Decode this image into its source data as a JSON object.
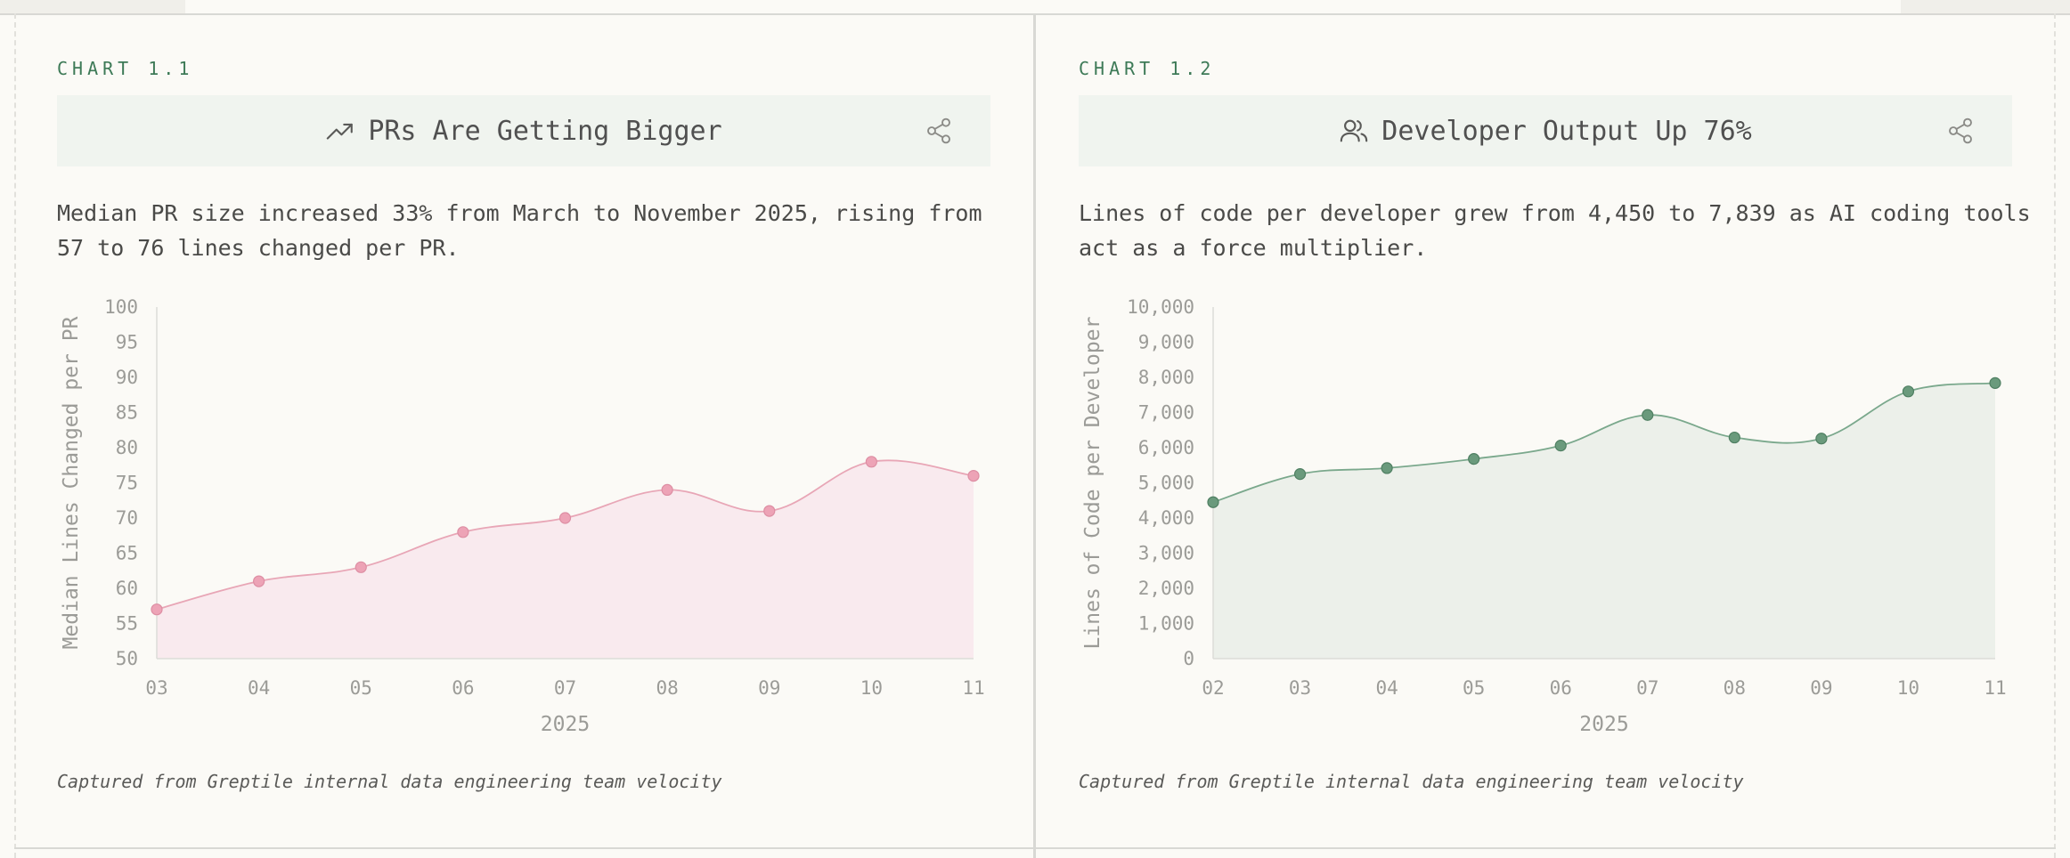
{
  "panels": [
    {
      "eyebrow": "CHART 1.1",
      "title": "PRs Are Getting Bigger",
      "title_icon": "trending-up-icon",
      "share_icon": "share-icon",
      "description": "Median PR size increased 33% from March to November 2025, rising from 57 to 76 lines changed per PR.",
      "caption": "Captured from Greptile internal data engineering team velocity"
    },
    {
      "eyebrow": "CHART 1.2",
      "title": "Developer Output Up 76%",
      "title_icon": "users-icon",
      "share_icon": "share-icon",
      "description": "Lines of code per developer grew from 4,450 to 7,839 as AI coding tools act as a force multiplier.",
      "caption": "Captured from Greptile internal data engineering team velocity"
    }
  ],
  "chart_data": [
    {
      "type": "area",
      "title": "PRs Are Getting Bigger",
      "categories": [
        "03",
        "04",
        "05",
        "06",
        "07",
        "08",
        "09",
        "10",
        "11"
      ],
      "series": [
        {
          "values": [
            57,
            61,
            63,
            68,
            70,
            74,
            71,
            78,
            76
          ]
        }
      ],
      "xlabel": "2025",
      "ylabel": "Median Lines Changed per PR",
      "ylim": [
        50,
        100
      ],
      "yticks": [
        "100",
        "95",
        "90",
        "85",
        "80",
        "75",
        "70",
        "65",
        "60",
        "55",
        "50"
      ],
      "grid": false,
      "colors": {
        "line": "#e8a6b6",
        "fill": "#f9eaee",
        "marker": "#eda3b6",
        "marker_stroke": "#dd8ea3"
      }
    },
    {
      "type": "area",
      "title": "Developer Output Up 76%",
      "categories": [
        "02",
        "03",
        "04",
        "05",
        "06",
        "07",
        "08",
        "09",
        "10",
        "11"
      ],
      "series": [
        {
          "values": [
            4450,
            5250,
            5420,
            5680,
            6060,
            6930,
            6290,
            6260,
            7600,
            7839
          ]
        }
      ],
      "xlabel": "2025",
      "ylabel": "Lines of Code per Developer",
      "ylim": [
        0,
        10000
      ],
      "yticks": [
        "10,000",
        "9,000",
        "8,000",
        "7,000",
        "6,000",
        "5,000",
        "4,000",
        "3,000",
        "2,000",
        "1,000",
        "0"
      ],
      "grid": false,
      "colors": {
        "line": "#7aa88c",
        "fill": "#ecf0ea",
        "marker": "#6a9a7c",
        "marker_stroke": "#4f7f62"
      }
    }
  ]
}
